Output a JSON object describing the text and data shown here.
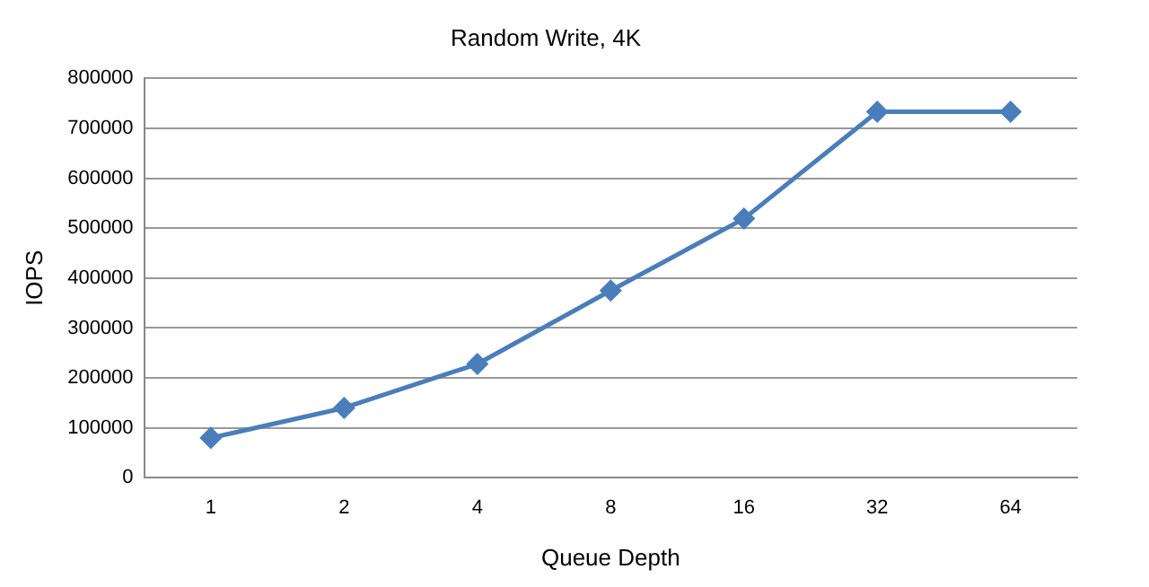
{
  "chart_data": {
    "type": "line",
    "title": "Random Write, 4K",
    "xlabel": "Queue Depth",
    "ylabel": "IOPS",
    "categories": [
      "1",
      "2",
      "4",
      "8",
      "16",
      "32",
      "64"
    ],
    "series": [
      {
        "color": "#4a7ebb",
        "values": [
          80000,
          140000,
          228000,
          375000,
          519000,
          733000,
          733000
        ]
      }
    ],
    "ylim": [
      0,
      800000
    ],
    "yticks": [
      0,
      100000,
      200000,
      300000,
      400000,
      500000,
      600000,
      700000,
      800000
    ],
    "grid": "y",
    "legend": false,
    "marker": "diamond",
    "line_style": "solid"
  }
}
